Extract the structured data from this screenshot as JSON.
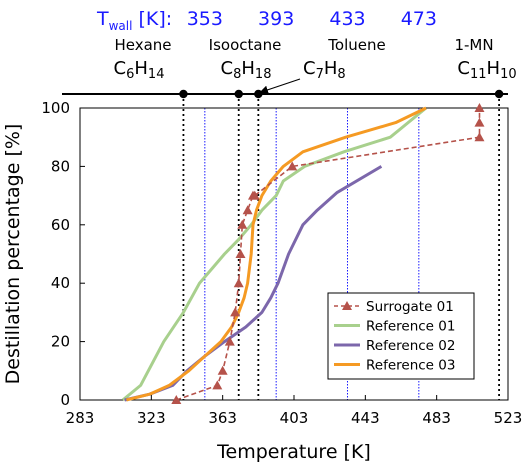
{
  "chart_data": {
    "type": "line",
    "xlabel": "Temperature [K]",
    "ylabel": "Destillation percentage [%]",
    "xlim": [
      283,
      523
    ],
    "ylim": [
      0,
      100
    ],
    "x_ticks": [
      "283",
      "323",
      "363",
      "403",
      "443",
      "483",
      "523"
    ],
    "y_ticks": [
      "0",
      "20",
      "40",
      "60",
      "80",
      "100"
    ],
    "grid": false,
    "legend_position": "bottom-right",
    "series": [
      {
        "name": "Surrogate 01",
        "color": "#b5524a",
        "style": "dashed-triangle-markers",
        "x": [
          337,
          360,
          363,
          367,
          370,
          372,
          373,
          374,
          377,
          380,
          381,
          402,
          507,
          507,
          507
        ],
        "y": [
          0,
          5,
          10,
          20,
          30,
          40,
          50,
          60,
          65,
          70,
          70,
          80,
          90,
          95,
          100
        ]
      },
      {
        "name": "Reference 01",
        "color": "#a8d08d",
        "style": "solid",
        "x": [
          307,
          317,
          330,
          341,
          350,
          357,
          364,
          372,
          379,
          385,
          393,
          397,
          409,
          431,
          457,
          477
        ],
        "y": [
          0,
          5,
          20,
          30,
          40,
          45,
          50,
          55,
          60,
          65,
          70,
          75,
          80,
          85,
          90,
          100
        ]
      },
      {
        "name": "Reference 02",
        "color": "#7c67ab",
        "style": "solid",
        "x": [
          308,
          322,
          335,
          343,
          353,
          364,
          376,
          385,
          390,
          394,
          400,
          408,
          416,
          427,
          452
        ],
        "y": [
          0,
          2,
          5,
          10,
          15,
          20,
          25,
          30,
          35,
          40,
          50,
          60,
          65,
          71,
          80
        ]
      },
      {
        "name": "Reference 03",
        "color": "#f59a23",
        "style": "solid",
        "x": [
          309,
          322,
          333,
          344,
          353,
          362,
          368,
          372,
          375,
          377,
          379,
          380,
          382,
          385,
          390,
          397,
          408,
          432,
          460,
          477
        ],
        "y": [
          0,
          2,
          5,
          10,
          15,
          20,
          25,
          30,
          35,
          40,
          50,
          60,
          65,
          70,
          75,
          80,
          85,
          90,
          95,
          100
        ]
      }
    ],
    "wall_temperature_label": "T",
    "wall_temperature_label_sub": "wall",
    "wall_temperature_unit": " [K]: ",
    "wall_temperatures": [
      353,
      393,
      433,
      473
    ],
    "wall_temperature_color": "#1a1aff",
    "components": [
      {
        "name": "Hexane",
        "formula_parts": [
          "C",
          "6",
          "H",
          "14"
        ],
        "boiling_point": 341
      },
      {
        "name": "Isooctane",
        "formula_parts": [
          "C",
          "8",
          "H",
          "18"
        ],
        "boiling_point": 372
      },
      {
        "name": "Toluene",
        "formula_parts": [
          "C",
          "7",
          "H",
          "8"
        ],
        "boiling_point": 383
      },
      {
        "name": "1-MN",
        "formula_parts": [
          "C",
          "11",
          "H",
          "10"
        ],
        "boiling_point": 518
      }
    ]
  }
}
